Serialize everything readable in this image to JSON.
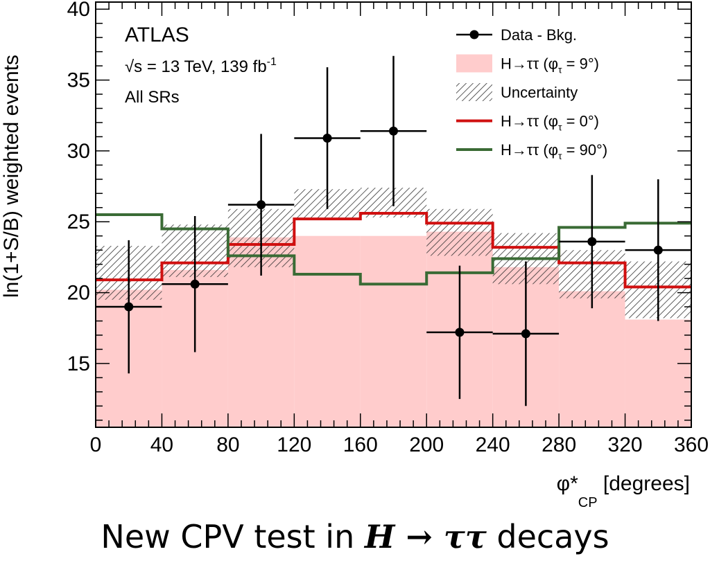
{
  "caption": {
    "prefix": "New CPV test in ",
    "math": "H → ττ",
    "suffix": " decays"
  },
  "chart_data": {
    "type": "histogram",
    "experiment_label": "ATLAS",
    "energy_label": "√s = 13 TeV, 139 fb",
    "energy_label_superscript": "-1",
    "region_label": "All SRs",
    "xlabel": "φ*",
    "xlabel_subscript": "CP",
    "xlabel_unit": " [degrees]",
    "ylabel": "ln(1+S/B) weighted events",
    "xlim": [
      0,
      360
    ],
    "ylim": [
      10.5,
      40.5
    ],
    "xticks": [
      0,
      40,
      80,
      120,
      160,
      200,
      240,
      280,
      320,
      360
    ],
    "yticks": [
      15,
      20,
      25,
      30,
      35,
      40
    ],
    "bin_edges": [
      0,
      40,
      80,
      120,
      160,
      200,
      240,
      280,
      320,
      360
    ],
    "legend_position": "top-right",
    "legend": [
      {
        "key": "data",
        "label": "Data - Bkg."
      },
      {
        "key": "sig9",
        "label": "H→ττ (φ",
        "sub": "τ",
        "tail": " = 9°)"
      },
      {
        "key": "unc",
        "label": "Uncertainty"
      },
      {
        "key": "sig0",
        "label": "H→ττ (φ",
        "sub": "τ",
        "tail": " = 0°)"
      },
      {
        "key": "sig90",
        "label": "H→ττ (φ",
        "sub": "τ",
        "tail": " = 90°)"
      }
    ],
    "series": [
      {
        "key": "sig9",
        "name": "H→ττ (φτ = 9°)",
        "style": "filled",
        "color": "#ffcccc",
        "values": [
          20.2,
          21.6,
          23.9,
          24.0,
          24.0,
          24.3,
          21.8,
          20.1,
          18.1
        ]
      },
      {
        "key": "unc",
        "name": "Uncertainty",
        "style": "hatched",
        "color": "#333333",
        "low": [
          19.5,
          21.1,
          21.8,
          25.2,
          25.3,
          22.6,
          20.6,
          19.6,
          18.2
        ],
        "high": [
          23.3,
          24.8,
          25.9,
          27.3,
          27.4,
          25.9,
          24.2,
          23.0,
          22.2
        ]
      },
      {
        "key": "sig0",
        "name": "H→ττ (φτ = 0°)",
        "style": "step",
        "color": "#d01010",
        "values": [
          20.9,
          22.1,
          23.4,
          25.2,
          25.6,
          24.9,
          23.2,
          22.1,
          20.4
        ]
      },
      {
        "key": "sig90",
        "name": "H→ττ (φτ = 90°)",
        "style": "step",
        "color": "#3a6b35",
        "values": [
          25.5,
          24.5,
          22.6,
          21.3,
          20.6,
          21.4,
          22.4,
          24.6,
          24.9
        ]
      },
      {
        "key": "data",
        "name": "Data - Bkg.",
        "style": "points",
        "color": "#000000",
        "x": [
          20,
          60,
          100,
          140,
          180,
          220,
          260,
          300,
          340
        ],
        "y": [
          19.0,
          20.6,
          26.2,
          30.9,
          31.4,
          17.2,
          17.1,
          23.6,
          23.0
        ],
        "err_low": [
          4.7,
          4.8,
          5.0,
          5.0,
          5.3,
          4.7,
          5.1,
          4.7,
          5.0
        ],
        "err_high": [
          4.7,
          4.8,
          5.0,
          5.0,
          5.3,
          4.7,
          5.1,
          4.7,
          5.0
        ]
      }
    ]
  }
}
